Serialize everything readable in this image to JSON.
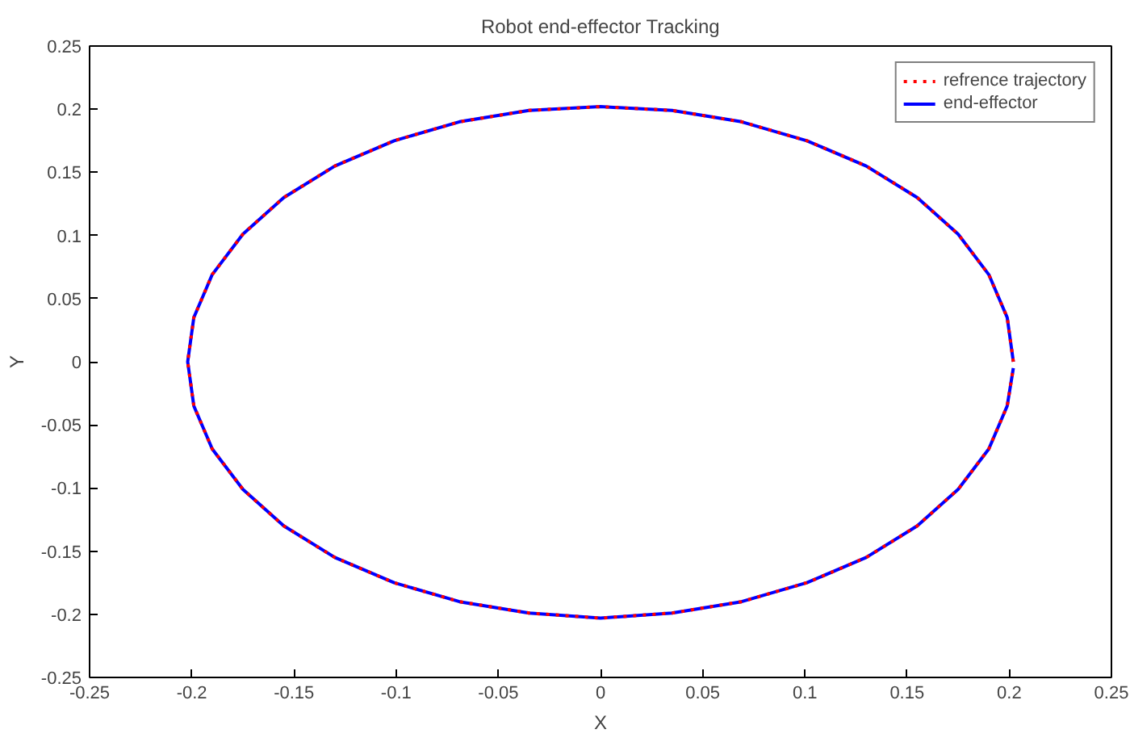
{
  "chart_data": {
    "type": "line",
    "title": "Robot end-effector Tracking",
    "xlabel": "X",
    "ylabel": "Y",
    "xlim": [
      -0.25,
      0.25
    ],
    "ylim": [
      -0.25,
      0.25
    ],
    "xticks": [
      -0.25,
      -0.2,
      -0.15,
      -0.1,
      -0.05,
      0,
      0.05,
      0.1,
      0.15,
      0.2,
      0.25
    ],
    "yticks": [
      -0.25,
      -0.2,
      -0.15,
      -0.1,
      -0.05,
      0,
      0.05,
      0.1,
      0.15,
      0.2,
      0.25
    ],
    "grid": false,
    "legend": "top right",
    "marker": "none",
    "series": [
      {
        "name": "refrence trajectory",
        "color": "#ff0000",
        "line_style": "dotted",
        "x": [
          0.202,
          0.199,
          0.19,
          0.175,
          0.155,
          0.13,
          0.101,
          0.069,
          0.035,
          0,
          -0.035,
          -0.069,
          -0.101,
          -0.13,
          -0.155,
          -0.175,
          -0.19,
          -0.199,
          -0.202,
          -0.199,
          -0.19,
          -0.175,
          -0.155,
          -0.13,
          -0.101,
          -0.069,
          -0.035,
          0,
          0.035,
          0.069,
          0.101,
          0.13,
          0.155,
          0.175,
          0.19,
          0.199,
          0.202
        ],
        "values": [
          0,
          0.035,
          0.069,
          0.101,
          0.13,
          0.155,
          0.175,
          0.19,
          0.199,
          0.202,
          0.199,
          0.19,
          0.175,
          0.155,
          0.13,
          0.101,
          0.069,
          0.035,
          0,
          -0.035,
          -0.069,
          -0.101,
          -0.13,
          -0.155,
          -0.175,
          -0.19,
          -0.199,
          -0.203,
          -0.199,
          -0.19,
          -0.175,
          -0.155,
          -0.13,
          -0.101,
          -0.069,
          -0.035,
          -0.005
        ]
      },
      {
        "name": "end-effector",
        "color": "#0000ff",
        "line_style": "solid",
        "x": [
          0.202,
          0.199,
          0.19,
          0.175,
          0.155,
          0.13,
          0.101,
          0.069,
          0.035,
          0,
          -0.035,
          -0.069,
          -0.101,
          -0.13,
          -0.155,
          -0.175,
          -0.19,
          -0.199,
          -0.202,
          -0.199,
          -0.19,
          -0.175,
          -0.155,
          -0.13,
          -0.101,
          -0.069,
          -0.035,
          0,
          0.035,
          0.069,
          0.101,
          0.13,
          0.155,
          0.175,
          0.19,
          0.199,
          0.202
        ],
        "values": [
          0,
          0.035,
          0.069,
          0.101,
          0.13,
          0.155,
          0.175,
          0.19,
          0.199,
          0.202,
          0.199,
          0.19,
          0.175,
          0.155,
          0.13,
          0.101,
          0.069,
          0.035,
          0,
          -0.035,
          -0.069,
          -0.101,
          -0.13,
          -0.155,
          -0.175,
          -0.19,
          -0.199,
          -0.203,
          -0.199,
          -0.19,
          -0.175,
          -0.155,
          -0.13,
          -0.101,
          -0.069,
          -0.035,
          -0.005
        ]
      }
    ]
  }
}
